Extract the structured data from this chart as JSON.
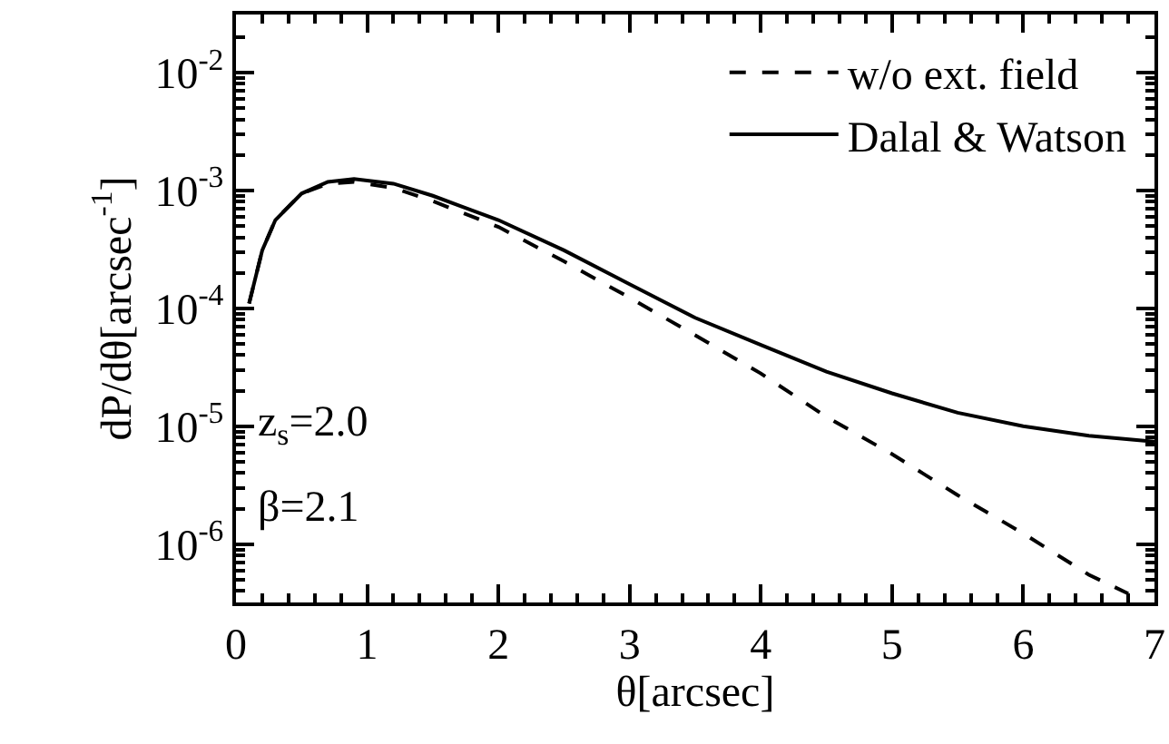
{
  "chart_data": {
    "type": "line",
    "xlabel": "θ[arcsec]",
    "ylabel": "dP/dθ[arcsec$^{-1}$]",
    "log": "y",
    "legend": "top right",
    "xlim": [
      0,
      7
    ],
    "xticks": [
      0,
      1,
      2,
      3,
      4,
      5,
      6,
      7
    ],
    "ylim": [
      3.2e-07,
      0.031
    ],
    "yticks": [
      {
        "value": 1e-06,
        "label": "10$^{-6}$"
      },
      {
        "value": 1e-05,
        "label": "10$^{-5}$"
      },
      {
        "value": 0.0001,
        "label": "10$^{-4}$"
      },
      {
        "value": 0.001,
        "label": "10$^{-3}$"
      },
      {
        "value": 0.01,
        "label": "10$^{-2}$"
      }
    ],
    "annotations": [
      "z$_{s}$=2.0",
      "β=2.1"
    ],
    "series": [
      {
        "name": "w/o ext. field",
        "color": "#000000",
        "line_style": "dashed",
        "x": [
          0.1,
          0.2,
          0.3,
          0.5,
          0.7,
          0.9,
          1.2,
          1.5,
          2,
          2.5,
          3,
          3.5,
          4,
          4.5,
          5,
          5.5,
          6,
          6.5,
          6.8
        ],
        "values": [
          0.00011,
          0.00031,
          0.00056,
          0.00094,
          0.00114,
          0.00118,
          0.00105,
          0.00081,
          0.00049,
          0.00025,
          0.000123,
          5.9e-05,
          2.8e-05,
          1.2e-05,
          5.8e-06,
          2.6e-06,
          1.23e-06,
          5.5e-07,
          3.8e-07
        ]
      },
      {
        "name": "Dalal & Watson",
        "color": "#000000",
        "line_style": "solid",
        "x": [
          0.1,
          0.2,
          0.3,
          0.5,
          0.7,
          0.9,
          1.2,
          1.5,
          2,
          2.5,
          3,
          3.5,
          4,
          4.5,
          5,
          5.5,
          6,
          6.5,
          7
        ],
        "values": [
          0.00011,
          0.00031,
          0.00056,
          0.00094,
          0.00118,
          0.00125,
          0.00114,
          0.0009,
          0.00056,
          0.00031,
          0.00016,
          8.3e-05,
          4.9e-05,
          2.9e-05,
          1.9e-05,
          1.3e-05,
          1e-05,
          8.3e-06,
          7.4e-06
        ]
      }
    ]
  }
}
